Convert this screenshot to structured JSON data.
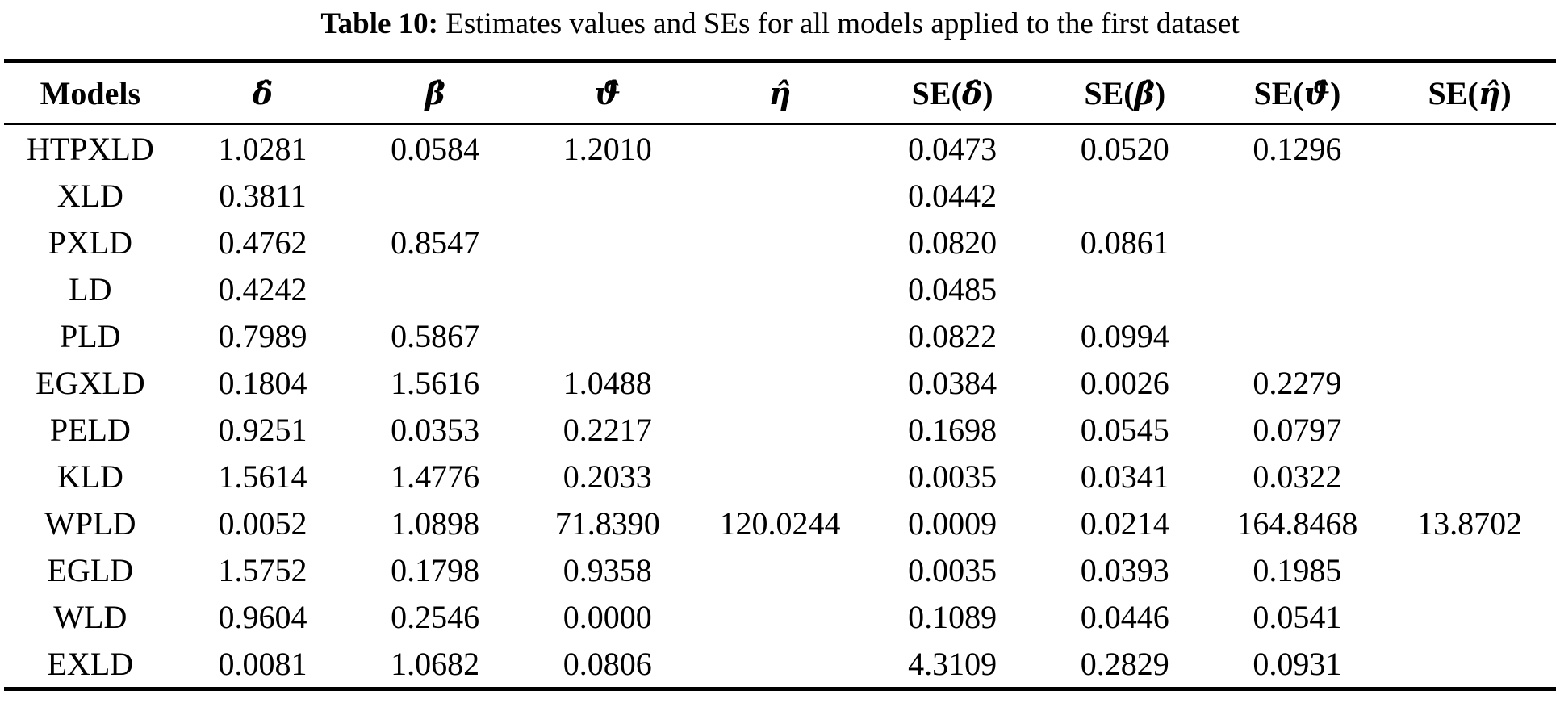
{
  "caption": {
    "label": "Table 10:",
    "text": " Estimates values and SEs for all models applied to the first dataset"
  },
  "colors": {
    "text": "#000000",
    "background": "#ffffff",
    "rule": "#000000"
  },
  "table": {
    "headers": [
      {
        "pre": "Models",
        "sym": "",
        "post": ""
      },
      {
        "pre": "",
        "sym": "δ̂",
        "post": ""
      },
      {
        "pre": "",
        "sym": "β̂",
        "post": ""
      },
      {
        "pre": "",
        "sym": "ϑ̂",
        "post": ""
      },
      {
        "pre": "",
        "sym": "η̂",
        "post": ""
      },
      {
        "pre": "SE(",
        "sym": "δ̂",
        "post": ")"
      },
      {
        "pre": "SE(",
        "sym": "β̂",
        "post": ")"
      },
      {
        "pre": "SE(",
        "sym": "ϑ̂",
        "post": ")"
      },
      {
        "pre": "SE(",
        "sym": "η̂",
        "post": ")"
      }
    ],
    "rows": [
      [
        "HTPXLD",
        "1.0281",
        "0.0584",
        "1.2010",
        "",
        "0.0473",
        "0.0520",
        "0.1296",
        ""
      ],
      [
        "XLD",
        "0.3811",
        "",
        "",
        "",
        "0.0442",
        "",
        "",
        ""
      ],
      [
        "PXLD",
        "0.4762",
        "0.8547",
        "",
        "",
        "0.0820",
        "0.0861",
        "",
        ""
      ],
      [
        "LD",
        "0.4242",
        "",
        "",
        "",
        "0.0485",
        "",
        "",
        ""
      ],
      [
        "PLD",
        "0.7989",
        "0.5867",
        "",
        "",
        "0.0822",
        "0.0994",
        "",
        ""
      ],
      [
        "EGXLD",
        "0.1804",
        "1.5616",
        "1.0488",
        "",
        "0.0384",
        "0.0026",
        "0.2279",
        ""
      ],
      [
        "PELD",
        "0.9251",
        "0.0353",
        "0.2217",
        "",
        "0.1698",
        "0.0545",
        "0.0797",
        ""
      ],
      [
        "KLD",
        "1.5614",
        "1.4776",
        "0.2033",
        "",
        "0.0035",
        "0.0341",
        "0.0322",
        ""
      ],
      [
        "WPLD",
        "0.0052",
        "1.0898",
        "71.8390",
        "120.0244",
        "0.0009",
        "0.0214",
        "164.8468",
        "13.8702"
      ],
      [
        "EGLD",
        "1.5752",
        "0.1798",
        "0.9358",
        "",
        "0.0035",
        "0.0393",
        "0.1985",
        ""
      ],
      [
        "WLD",
        "0.9604",
        "0.2546",
        "0.0000",
        "",
        "0.1089",
        "0.0446",
        "0.0541",
        ""
      ],
      [
        "EXLD",
        "0.0081",
        "1.0682",
        "0.0806",
        "",
        "4.3109",
        "0.2829",
        "0.0931",
        ""
      ]
    ]
  }
}
